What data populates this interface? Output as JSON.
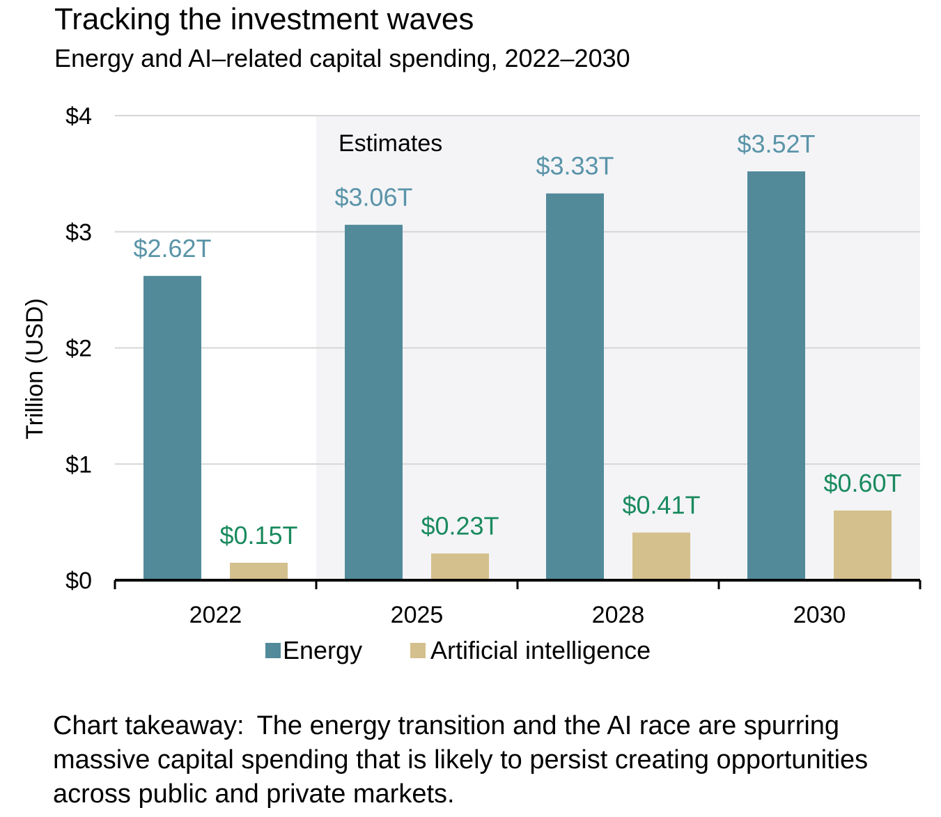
{
  "header": {
    "title": "Tracking the investment waves",
    "subtitle": "Energy and AI–related capital spending, 2022–2030"
  },
  "colors": {
    "energy_bar": "#528a9a",
    "energy_label": "#5a94a8",
    "ai_bar": "#d4c08c",
    "ai_label": "#1a8a5e",
    "estimate_band": "#f4f4f7",
    "grid": "#d6d6d6"
  },
  "chart_data": {
    "type": "bar",
    "categories": [
      "2022",
      "2025",
      "2028",
      "2030"
    ],
    "series": [
      {
        "name": "Energy",
        "values": [
          2.62,
          3.06,
          3.33,
          3.52
        ],
        "labels": [
          "$2.62T",
          "$3.06T",
          "$3.33T",
          "$3.52T"
        ]
      },
      {
        "name": "Artificial intelligence",
        "values": [
          0.15,
          0.23,
          0.41,
          0.6
        ],
        "labels": [
          "$0.15T",
          "$0.23T",
          "$0.41T",
          "$0.60T"
        ]
      }
    ],
    "ylabel": "Trillion (USD)",
    "ylim": [
      0,
      4
    ],
    "yticks": [
      0,
      1,
      2,
      3,
      4
    ],
    "ytick_labels": [
      "$0",
      "$1",
      "$2",
      "$3",
      "$4"
    ],
    "grid": true,
    "legend": "bottom",
    "annotation": {
      "text": "Estimates",
      "start_category": "2025",
      "end_category": "2030"
    }
  },
  "takeaway": {
    "label": "Chart takeaway:",
    "text": "The energy transition and the AI race are spurring massive capital spending that is likely to persist creating opportunities across public and private markets."
  }
}
